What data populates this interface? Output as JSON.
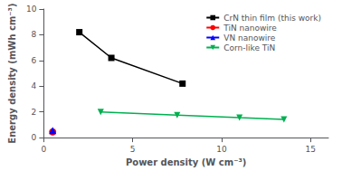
{
  "chart_data": {
    "type": "line",
    "xlabel": "Power density (W cm⁻³)",
    "ylabel": "Energy density (mWh cm⁻³)",
    "xlim": [
      0,
      16
    ],
    "xticks": [
      0,
      5,
      10,
      15
    ],
    "ylim": [
      0,
      10
    ],
    "yticks": [
      0,
      2,
      4,
      6,
      8,
      10
    ],
    "grid": false,
    "legend": "upper right",
    "series": [
      {
        "name": "CrN thin film (this work)",
        "color": "#000000",
        "marker": "square",
        "x": [
          2.0,
          3.8,
          7.8
        ],
        "values": [
          8.2,
          6.2,
          4.2
        ]
      },
      {
        "name": "TiN nanowire",
        "color": "#ff0000",
        "marker": "circle",
        "x": [
          0.5
        ],
        "values": [
          0.45
        ]
      },
      {
        "name": "VN nanowire",
        "color": "#0000ff",
        "marker": "triangle-up",
        "x": [
          0.5
        ],
        "values": [
          0.55
        ]
      },
      {
        "name": "Corn-like TiN",
        "color": "#00b050",
        "marker": "triangle-down",
        "x": [
          3.2,
          7.5,
          11.0,
          13.5
        ],
        "values": [
          2.0,
          1.75,
          1.55,
          1.42
        ]
      }
    ]
  }
}
